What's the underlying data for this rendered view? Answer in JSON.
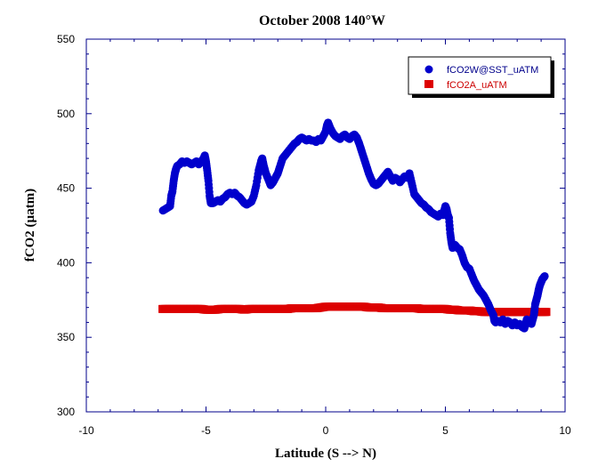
{
  "chart_data": {
    "type": "scatter",
    "title": "October 2008 140°W",
    "xlabel": "Latitude (S --> N)",
    "ylabel": "fCO2 (µatm)",
    "xlim": [
      -10,
      10
    ],
    "ylim": [
      300,
      550
    ],
    "x_ticks": [
      "-10",
      "-5",
      "0",
      "5",
      "10"
    ],
    "y_ticks": [
      "300",
      "350",
      "400",
      "450",
      "500",
      "550"
    ],
    "grid": false,
    "legend_position": "top-right",
    "axis_color": "#00008b",
    "series": [
      {
        "name": "fCO2W@SST_uATM",
        "color": "#0000cc",
        "marker": "circle",
        "points": [
          [
            -6.8,
            435
          ],
          [
            -6.7,
            436
          ],
          [
            -6.6,
            437
          ],
          [
            -6.5,
            438
          ],
          [
            -6.45,
            445
          ],
          [
            -6.4,
            448
          ],
          [
            -6.35,
            455
          ],
          [
            -6.3,
            460
          ],
          [
            -6.25,
            463
          ],
          [
            -6.2,
            465
          ],
          [
            -6.1,
            466
          ],
          [
            -6.0,
            468
          ],
          [
            -5.9,
            467
          ],
          [
            -5.8,
            468
          ],
          [
            -5.7,
            467
          ],
          [
            -5.6,
            466
          ],
          [
            -5.5,
            467
          ],
          [
            -5.4,
            468
          ],
          [
            -5.3,
            466
          ],
          [
            -5.2,
            468
          ],
          [
            -5.1,
            470
          ],
          [
            -5.05,
            472
          ],
          [
            -5.0,
            468
          ],
          [
            -4.95,
            462
          ],
          [
            -4.9,
            455
          ],
          [
            -4.85,
            445
          ],
          [
            -4.8,
            440
          ],
          [
            -4.7,
            440
          ],
          [
            -4.6,
            441
          ],
          [
            -4.5,
            442
          ],
          [
            -4.4,
            441
          ],
          [
            -4.3,
            443
          ],
          [
            -4.2,
            444
          ],
          [
            -4.1,
            446
          ],
          [
            -4.0,
            447
          ],
          [
            -3.9,
            446
          ],
          [
            -3.8,
            447
          ],
          [
            -3.7,
            445
          ],
          [
            -3.6,
            444
          ],
          [
            -3.5,
            442
          ],
          [
            -3.4,
            440
          ],
          [
            -3.3,
            439
          ],
          [
            -3.2,
            440
          ],
          [
            -3.1,
            441
          ],
          [
            -3.0,
            445
          ],
          [
            -2.9,
            452
          ],
          [
            -2.8,
            462
          ],
          [
            -2.7,
            468
          ],
          [
            -2.65,
            470
          ],
          [
            -2.6,
            466
          ],
          [
            -2.5,
            460
          ],
          [
            -2.4,
            456
          ],
          [
            -2.3,
            452
          ],
          [
            -2.2,
            454
          ],
          [
            -2.1,
            457
          ],
          [
            -2.0,
            460
          ],
          [
            -1.9,
            465
          ],
          [
            -1.8,
            470
          ],
          [
            -1.7,
            472
          ],
          [
            -1.6,
            474
          ],
          [
            -1.5,
            476
          ],
          [
            -1.4,
            478
          ],
          [
            -1.3,
            480
          ],
          [
            -1.2,
            481
          ],
          [
            -1.1,
            483
          ],
          [
            -1.0,
            484
          ],
          [
            -0.9,
            483
          ],
          [
            -0.8,
            482
          ],
          [
            -0.7,
            483
          ],
          [
            -0.6,
            482
          ],
          [
            -0.5,
            482
          ],
          [
            -0.4,
            481
          ],
          [
            -0.3,
            483
          ],
          [
            -0.2,
            482
          ],
          [
            -0.1,
            485
          ],
          [
            0.0,
            488
          ],
          [
            0.05,
            492
          ],
          [
            0.1,
            494
          ],
          [
            0.2,
            490
          ],
          [
            0.3,
            487
          ],
          [
            0.4,
            485
          ],
          [
            0.5,
            484
          ],
          [
            0.6,
            483
          ],
          [
            0.7,
            485
          ],
          [
            0.8,
            486
          ],
          [
            0.9,
            484
          ],
          [
            1.0,
            483
          ],
          [
            1.1,
            485
          ],
          [
            1.2,
            486
          ],
          [
            1.3,
            484
          ],
          [
            1.4,
            480
          ],
          [
            1.5,
            475
          ],
          [
            1.6,
            470
          ],
          [
            1.7,
            465
          ],
          [
            1.8,
            460
          ],
          [
            1.9,
            456
          ],
          [
            2.0,
            453
          ],
          [
            2.1,
            452
          ],
          [
            2.2,
            453
          ],
          [
            2.3,
            455
          ],
          [
            2.4,
            457
          ],
          [
            2.5,
            459
          ],
          [
            2.6,
            461
          ],
          [
            2.7,
            458
          ],
          [
            2.8,
            455
          ],
          [
            2.9,
            457
          ],
          [
            3.0,
            456
          ],
          [
            3.1,
            454
          ],
          [
            3.2,
            456
          ],
          [
            3.3,
            458
          ],
          [
            3.4,
            457
          ],
          [
            3.5,
            460
          ],
          [
            3.6,
            453
          ],
          [
            3.7,
            446
          ],
          [
            3.8,
            444
          ],
          [
            3.9,
            442
          ],
          [
            4.0,
            440
          ],
          [
            4.1,
            439
          ],
          [
            4.2,
            437
          ],
          [
            4.3,
            436
          ],
          [
            4.4,
            434
          ],
          [
            4.5,
            433
          ],
          [
            4.6,
            432
          ],
          [
            4.7,
            431
          ],
          [
            4.8,
            433
          ],
          [
            4.9,
            432
          ],
          [
            5.0,
            438
          ],
          [
            5.05,
            436
          ],
          [
            5.1,
            432
          ],
          [
            5.15,
            430
          ],
          [
            5.2,
            420
          ],
          [
            5.25,
            414
          ],
          [
            5.3,
            410
          ],
          [
            5.4,
            412
          ],
          [
            5.5,
            410
          ],
          [
            5.6,
            409
          ],
          [
            5.7,
            405
          ],
          [
            5.8,
            400
          ],
          [
            5.9,
            397
          ],
          [
            6.0,
            396
          ],
          [
            6.1,
            392
          ],
          [
            6.2,
            388
          ],
          [
            6.3,
            385
          ],
          [
            6.4,
            382
          ],
          [
            6.5,
            380
          ],
          [
            6.6,
            378
          ],
          [
            6.7,
            375
          ],
          [
            6.8,
            372
          ],
          [
            6.9,
            368
          ],
          [
            7.0,
            365
          ],
          [
            7.05,
            361
          ],
          [
            7.1,
            360
          ],
          [
            7.2,
            361
          ],
          [
            7.3,
            360
          ],
          [
            7.4,
            362
          ],
          [
            7.5,
            359
          ],
          [
            7.6,
            361
          ],
          [
            7.7,
            360
          ],
          [
            7.8,
            358
          ],
          [
            7.9,
            360
          ],
          [
            8.0,
            358
          ],
          [
            8.1,
            359
          ],
          [
            8.2,
            357
          ],
          [
            8.3,
            356
          ],
          [
            8.4,
            362
          ],
          [
            8.5,
            360
          ],
          [
            8.6,
            359
          ],
          [
            8.7,
            365
          ],
          [
            8.75,
            372
          ],
          [
            8.8,
            375
          ],
          [
            8.85,
            378
          ],
          [
            8.9,
            382
          ],
          [
            8.95,
            385
          ],
          [
            9.0,
            387
          ],
          [
            9.05,
            389
          ],
          [
            9.1,
            390
          ],
          [
            9.15,
            391
          ]
        ]
      },
      {
        "name": "fCO2A_uATM",
        "color": "#dd0000",
        "marker": "square",
        "points": [
          [
            -6.8,
            369
          ],
          [
            -6.6,
            369
          ],
          [
            -6.4,
            369
          ],
          [
            -6.2,
            369
          ],
          [
            -6.0,
            369
          ],
          [
            -5.8,
            369
          ],
          [
            -5.6,
            369
          ],
          [
            -5.4,
            369
          ],
          [
            -5.2,
            369
          ],
          [
            -5.0,
            368.5
          ],
          [
            -4.8,
            368.5
          ],
          [
            -4.6,
            368.5
          ],
          [
            -4.4,
            369
          ],
          [
            -4.2,
            369
          ],
          [
            -4.0,
            369
          ],
          [
            -3.8,
            369
          ],
          [
            -3.6,
            369
          ],
          [
            -3.4,
            368.5
          ],
          [
            -3.2,
            369
          ],
          [
            -3.0,
            369
          ],
          [
            -2.8,
            369
          ],
          [
            -2.6,
            369
          ],
          [
            -2.4,
            369
          ],
          [
            -2.2,
            369
          ],
          [
            -2.0,
            369
          ],
          [
            -1.8,
            369
          ],
          [
            -1.6,
            369
          ],
          [
            -1.4,
            369.5
          ],
          [
            -1.2,
            369.5
          ],
          [
            -1.0,
            369.5
          ],
          [
            -0.8,
            369.5
          ],
          [
            -0.6,
            369.5
          ],
          [
            -0.4,
            369.5
          ],
          [
            -0.2,
            370
          ],
          [
            0.0,
            370.5
          ],
          [
            0.2,
            370.5
          ],
          [
            0.4,
            370.5
          ],
          [
            0.6,
            370.5
          ],
          [
            0.8,
            370.5
          ],
          [
            1.0,
            370.5
          ],
          [
            1.2,
            370.5
          ],
          [
            1.4,
            370.5
          ],
          [
            1.6,
            370.5
          ],
          [
            1.8,
            370
          ],
          [
            2.0,
            370
          ],
          [
            2.2,
            370
          ],
          [
            2.4,
            369.5
          ],
          [
            2.6,
            369.5
          ],
          [
            2.8,
            369.5
          ],
          [
            3.0,
            369.5
          ],
          [
            3.2,
            369.5
          ],
          [
            3.4,
            369.5
          ],
          [
            3.6,
            369.5
          ],
          [
            3.8,
            369.5
          ],
          [
            4.0,
            369
          ],
          [
            4.2,
            369
          ],
          [
            4.4,
            369
          ],
          [
            4.6,
            369
          ],
          [
            4.8,
            369
          ],
          [
            5.0,
            369
          ],
          [
            5.2,
            368.5
          ],
          [
            5.4,
            368.5
          ],
          [
            5.6,
            368
          ],
          [
            5.8,
            368
          ],
          [
            6.0,
            368
          ],
          [
            6.2,
            367.5
          ],
          [
            6.4,
            367.5
          ],
          [
            6.6,
            367
          ],
          [
            6.8,
            367
          ],
          [
            7.0,
            367
          ],
          [
            7.2,
            367
          ],
          [
            7.4,
            367
          ],
          [
            7.6,
            367
          ],
          [
            7.8,
            367
          ],
          [
            8.0,
            367
          ],
          [
            8.2,
            367
          ],
          [
            8.4,
            367
          ],
          [
            8.6,
            367
          ],
          [
            8.8,
            367
          ],
          [
            9.0,
            367
          ],
          [
            9.2,
            367
          ]
        ]
      }
    ]
  }
}
